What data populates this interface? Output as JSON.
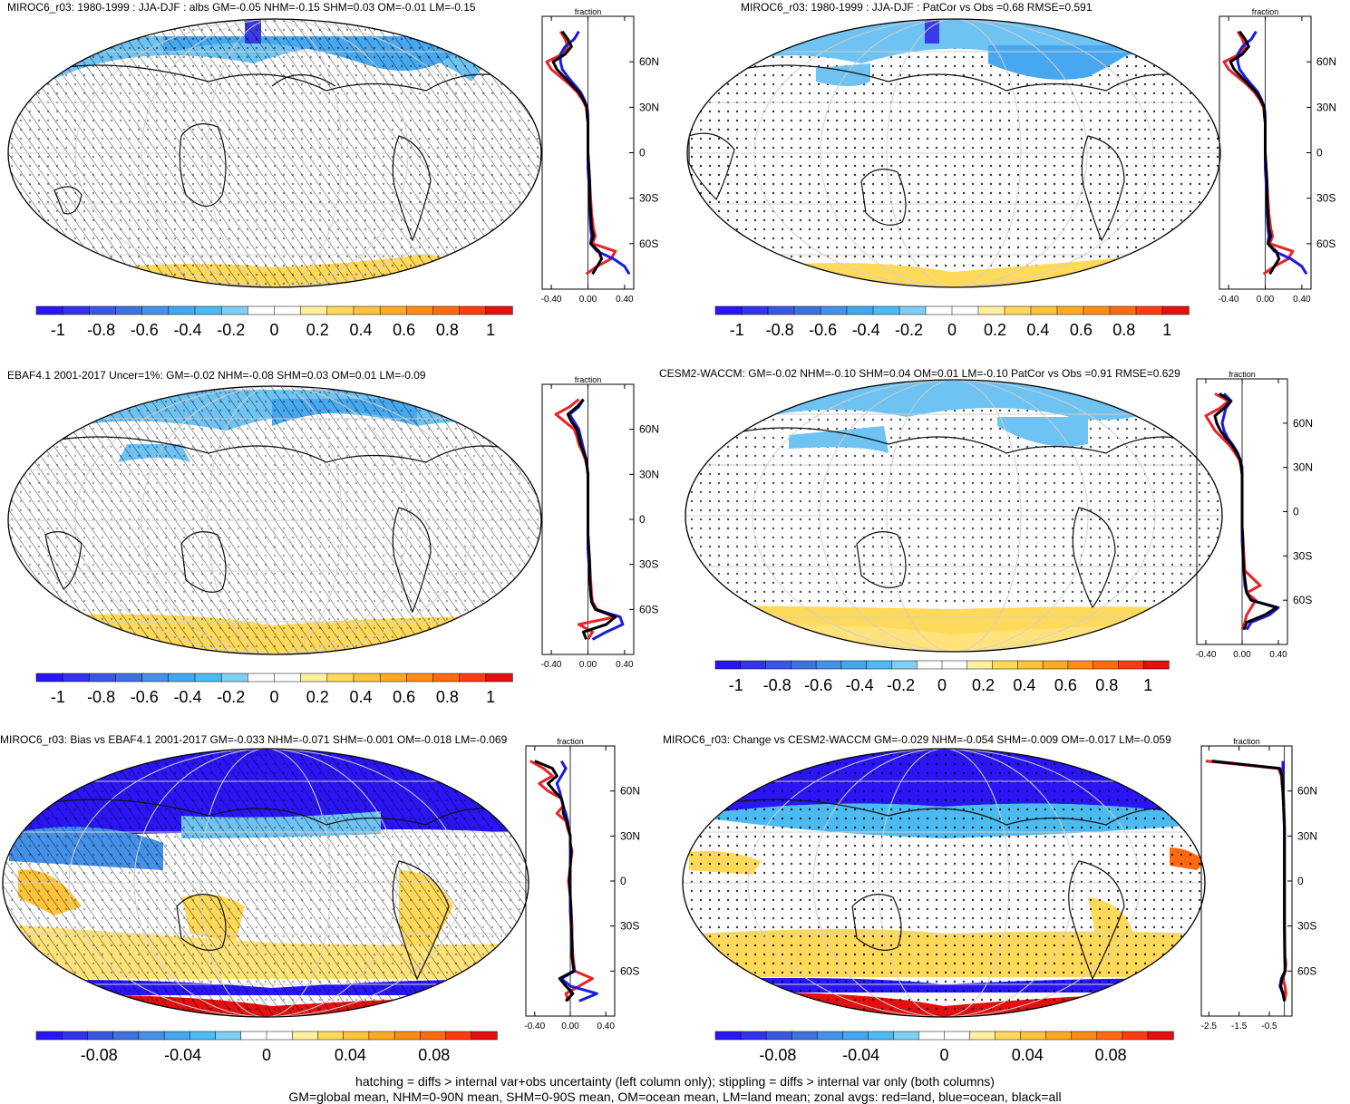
{
  "colors": {
    "ramp": [
      "#2a16f5",
      "#3332f0",
      "#3a56e6",
      "#3f72e0",
      "#4591e8",
      "#43a7ef",
      "#4bbbf2",
      "#7fcff4",
      "#ffffff",
      "#ffffff",
      "#fff0a0",
      "#ffd95a",
      "#ffc33c",
      "#ffaa22",
      "#ff8c14",
      "#ff6a10",
      "#ff3a10",
      "#e41010"
    ],
    "land": "#e8232a",
    "ocean": "#1a1ae6",
    "all": "#000000"
  },
  "footer": {
    "line1": "hatching = diffs > internal var+obs uncertainty (left column only); stippling = diffs > internal var only (both columns)",
    "line2": "GM=global mean, NHM=0-90N mean, SHM=0-90S mean, OM=ocean mean, LM=land mean; zonal avgs: red=land, blue=ocean, black=all"
  },
  "chart_data": [
    {
      "type": "heatmap",
      "title": "MIROC6_r03: 1980-1999 : JJA-DJF : albs GM=-0.05 NHM=-0.15 SHM=0.03 OM=-0.01 LM=-0.15",
      "colorbar_ticks": [
        "-1",
        "-0.8",
        "-0.6",
        "-0.4",
        "-0.2",
        "0",
        "0.2",
        "0.4",
        "0.6",
        "0.8",
        "1"
      ],
      "colorbar_range": [
        -1.1,
        1.1
      ],
      "zonal": {
        "label": "fraction",
        "x_ticks": [
          "-0.40",
          "0.00",
          "0.40"
        ],
        "xlim": [
          -0.5,
          0.5
        ],
        "y_ticks": [
          "60N",
          "30N",
          "0",
          "30S",
          "60S"
        ],
        "lat": [
          80,
          75,
          70,
          65,
          60,
          55,
          50,
          45,
          40,
          35,
          30,
          25,
          20,
          10,
          0,
          -10,
          -20,
          -30,
          -40,
          -50,
          -55,
          -60,
          -65,
          -70,
          -75,
          -80
        ],
        "land": [
          -0.3,
          -0.25,
          -0.22,
          -0.28,
          -0.45,
          -0.4,
          -0.3,
          -0.2,
          -0.12,
          -0.06,
          -0.02,
          -0.01,
          0,
          0,
          0,
          0.01,
          0.02,
          0.03,
          0.04,
          0.06,
          0.08,
          0.05,
          0.3,
          0.25,
          0.1,
          -0.02
        ],
        "ocean": [
          -0.1,
          -0.15,
          -0.25,
          -0.3,
          -0.3,
          -0.28,
          -0.22,
          -0.15,
          -0.08,
          -0.04,
          -0.01,
          0,
          0,
          0,
          0,
          0,
          0.01,
          0.02,
          0.02,
          0.03,
          0.04,
          0.03,
          0.1,
          0.28,
          0.4,
          0.45
        ],
        "all": [
          -0.28,
          -0.22,
          -0.18,
          -0.25,
          -0.38,
          -0.34,
          -0.26,
          -0.18,
          -0.1,
          -0.05,
          -0.01,
          -0.01,
          0,
          0,
          0,
          0.01,
          0.02,
          0.02,
          0.03,
          0.04,
          0.06,
          0.03,
          0.12,
          0.15,
          0.1,
          0.05
        ]
      }
    },
    {
      "type": "heatmap",
      "title": "MIROC6_r03: 1980-1999 : JJA-DJF : PatCor vs Obs =0.68 RMSE=0.591",
      "colorbar_ticks": [
        "-1",
        "-0.8",
        "-0.6",
        "-0.4",
        "-0.2",
        "0",
        "0.2",
        "0.4",
        "0.6",
        "0.8",
        "1"
      ],
      "colorbar_range": [
        -1.1,
        1.1
      ],
      "zonal": {
        "label": "fraction",
        "x_ticks": [
          "-0.40",
          "0.00",
          "0.40"
        ],
        "xlim": [
          -0.5,
          0.5
        ],
        "y_ticks": [
          "60N",
          "30N",
          "0",
          "30S",
          "60S"
        ],
        "lat": [
          80,
          75,
          70,
          65,
          60,
          55,
          50,
          45,
          40,
          35,
          30,
          25,
          20,
          10,
          0,
          -10,
          -20,
          -30,
          -40,
          -50,
          -55,
          -60,
          -65,
          -70,
          -75,
          -80
        ],
        "land": [
          -0.3,
          -0.25,
          -0.22,
          -0.28,
          -0.45,
          -0.4,
          -0.3,
          -0.2,
          -0.12,
          -0.06,
          -0.02,
          -0.01,
          0,
          0,
          0,
          0.01,
          0.02,
          0.03,
          0.04,
          0.06,
          0.08,
          0.05,
          0.3,
          0.25,
          0.1,
          -0.02
        ],
        "ocean": [
          -0.1,
          -0.15,
          -0.25,
          -0.3,
          -0.3,
          -0.28,
          -0.22,
          -0.15,
          -0.08,
          -0.04,
          -0.01,
          0,
          0,
          0,
          0,
          0,
          0.01,
          0.02,
          0.02,
          0.03,
          0.04,
          0.03,
          0.1,
          0.28,
          0.4,
          0.45
        ],
        "all": [
          -0.28,
          -0.22,
          -0.18,
          -0.25,
          -0.38,
          -0.34,
          -0.26,
          -0.18,
          -0.1,
          -0.05,
          -0.01,
          -0.01,
          0,
          0,
          0,
          0.01,
          0.02,
          0.02,
          0.03,
          0.04,
          0.06,
          0.03,
          0.12,
          0.15,
          0.1,
          0.05
        ]
      }
    },
    {
      "type": "heatmap",
      "title": "EBAF4.1 2001-2017 Uncer=1%: GM=-0.02 NHM=-0.08 SHM=0.03 OM=0.01 LM=-0.09",
      "colorbar_ticks": [
        "-1",
        "-0.8",
        "-0.6",
        "-0.4",
        "-0.2",
        "0",
        "0.2",
        "0.4",
        "0.6",
        "0.8",
        "1"
      ],
      "colorbar_range": [
        -1.1,
        1.1
      ],
      "zonal": {
        "label": "fraction",
        "x_ticks": [
          "-0.40",
          "0.00",
          "0.40"
        ],
        "xlim": [
          -0.5,
          0.5
        ],
        "y_ticks": [
          "60N",
          "30N",
          "0",
          "30S",
          "60S"
        ],
        "lat": [
          80,
          75,
          70,
          65,
          60,
          55,
          50,
          45,
          40,
          35,
          30,
          25,
          20,
          10,
          0,
          -10,
          -20,
          -30,
          -40,
          -50,
          -55,
          -60,
          -65,
          -70,
          -75,
          -80
        ],
        "land": [
          -0.1,
          -0.2,
          -0.35,
          -0.25,
          -0.15,
          -0.12,
          -0.1,
          -0.06,
          -0.03,
          -0.01,
          0,
          0,
          0,
          0,
          0,
          0,
          0.01,
          0.02,
          0.03,
          0.04,
          0.05,
          0.1,
          0.3,
          -0.1,
          0.05,
          0
        ],
        "ocean": [
          -0.05,
          -0.1,
          -0.2,
          -0.15,
          -0.1,
          -0.08,
          -0.06,
          -0.04,
          -0.02,
          -0.01,
          0,
          0,
          0,
          0,
          0,
          0,
          0,
          0.01,
          0.02,
          0.03,
          0.04,
          0.08,
          0.35,
          0.38,
          0.2,
          0.05
        ],
        "all": [
          -0.05,
          -0.12,
          -0.22,
          -0.18,
          -0.12,
          -0.1,
          -0.08,
          -0.05,
          -0.02,
          -0.01,
          0,
          0,
          0,
          0,
          0,
          0,
          0.01,
          0.02,
          0.02,
          0.03,
          0.04,
          0.08,
          0.3,
          0.2,
          -0.05,
          -0.02
        ]
      }
    },
    {
      "type": "heatmap",
      "title": "CESM2-WACCM: GM=-0.02 NHM=-0.10 SHM=0.04 OM=0.01 LM=-0.10 PatCor vs Obs =0.91 RMSE=0.629",
      "colorbar_ticks": [
        "-1",
        "-0.8",
        "-0.6",
        "-0.4",
        "-0.2",
        "0",
        "0.2",
        "0.4",
        "0.6",
        "0.8",
        "1"
      ],
      "colorbar_range": [
        -1.1,
        1.1
      ],
      "zonal": {
        "label": "fraction",
        "x_ticks": [
          "-0.40",
          "0.00",
          "0.40"
        ],
        "xlim": [
          -0.5,
          0.5
        ],
        "y_ticks": [
          "60N",
          "30N",
          "0",
          "30S",
          "60S"
        ],
        "lat": [
          80,
          75,
          70,
          65,
          60,
          55,
          50,
          45,
          40,
          35,
          30,
          25,
          20,
          10,
          0,
          -10,
          -20,
          -30,
          -40,
          -50,
          -55,
          -60,
          -65,
          -70,
          -75,
          -80
        ],
        "land": [
          -0.3,
          -0.15,
          -0.25,
          -0.4,
          -0.35,
          -0.3,
          -0.22,
          -0.14,
          -0.08,
          -0.03,
          -0.01,
          0,
          0,
          0,
          0,
          0,
          0.01,
          0.02,
          0.03,
          0.2,
          0.05,
          0.15,
          0.1,
          0.05,
          0.03,
          0
        ],
        "ocean": [
          -0.2,
          -0.12,
          -0.18,
          -0.2,
          -0.22,
          -0.2,
          -0.16,
          -0.1,
          -0.05,
          -0.02,
          0,
          0,
          0,
          0,
          0,
          0,
          0,
          0.01,
          0.02,
          0.03,
          0.05,
          0.1,
          0.4,
          0.3,
          0.1,
          0.05
        ],
        "all": [
          -0.25,
          -0.13,
          -0.2,
          -0.3,
          -0.28,
          -0.24,
          -0.18,
          -0.11,
          -0.06,
          -0.02,
          -0.01,
          0,
          0,
          0,
          0,
          0,
          0.01,
          0.01,
          0.02,
          0.04,
          0.05,
          0.1,
          0.38,
          0.25,
          0.05,
          0.02
        ]
      }
    },
    {
      "type": "heatmap",
      "title": "MIROC6_r03: Bias vs EBAF4.1 2001-2017 GM=-0.033 NHM=-0.071 SHM=-0.001 OM=-0.018 LM=-0.069",
      "colorbar_ticks": [
        "-0.08",
        "-0.04",
        "0",
        "0.04",
        "0.08"
      ],
      "colorbar_range": [
        -0.11,
        0.11
      ],
      "zonal": {
        "label": "fraction",
        "x_ticks": [
          "-0.40",
          "0.00",
          "0.40"
        ],
        "xlim": [
          -0.5,
          0.5
        ],
        "y_ticks": [
          "60N",
          "30N",
          "0",
          "30S",
          "60S"
        ],
        "lat": [
          80,
          75,
          70,
          65,
          60,
          55,
          50,
          45,
          40,
          35,
          30,
          25,
          20,
          10,
          0,
          -10,
          -20,
          -30,
          -40,
          -50,
          -55,
          -60,
          -65,
          -70,
          -75,
          -80
        ],
        "land": [
          -0.45,
          -0.3,
          -0.2,
          -0.35,
          -0.25,
          -0.1,
          -0.08,
          -0.15,
          -0.05,
          -0.03,
          0,
          0,
          0.02,
          0,
          -0.02,
          0,
          0.01,
          0.02,
          0.02,
          0.03,
          0.04,
          0.05,
          0.25,
          0.1,
          -0.05,
          -0.02
        ],
        "ocean": [
          -0.1,
          -0.05,
          -0.1,
          -0.15,
          -0.12,
          -0.1,
          -0.08,
          -0.05,
          -0.03,
          -0.02,
          0,
          0,
          0,
          0,
          0,
          0,
          0,
          0.01,
          0.01,
          0.02,
          0.03,
          0.05,
          -0.1,
          0,
          0.3,
          0.1
        ],
        "all": [
          -0.4,
          -0.2,
          -0.15,
          -0.25,
          -0.18,
          -0.1,
          -0.08,
          -0.08,
          -0.04,
          -0.02,
          0,
          0,
          0.01,
          0,
          -0.01,
          0,
          0.01,
          0.01,
          0.02,
          0.02,
          0.03,
          0.04,
          -0.12,
          -0.05,
          0.03,
          -0.05
        ]
      }
    },
    {
      "type": "heatmap",
      "title": "MIROC6_r03: Change vs CESM2-WACCM GM=-0.029 NHM=-0.054 SHM=-0.009 OM=-0.017 LM=-0.059",
      "colorbar_ticks": [
        "-0.08",
        "-0.04",
        "0",
        "0.04",
        "0.08"
      ],
      "colorbar_range": [
        -0.11,
        0.11
      ],
      "zonal": {
        "label": "fraction",
        "x_ticks": [
          "-2.5",
          "-1.5",
          "-0.5"
        ],
        "xlim": [
          -2.75,
          0.25
        ],
        "y_ticks": [
          "60N",
          "30N",
          "0",
          "30S",
          "60S"
        ],
        "lat": [
          80,
          75,
          70,
          65,
          60,
          55,
          50,
          45,
          40,
          35,
          30,
          25,
          20,
          10,
          0,
          -10,
          -20,
          -30,
          -40,
          -50,
          -55,
          -60,
          -65,
          -70,
          -75,
          -80
        ],
        "land": [
          -2.6,
          -0.2,
          -0.1,
          -0.08,
          -0.06,
          -0.04,
          -0.03,
          -0.02,
          -0.01,
          0,
          0,
          0,
          0,
          0,
          0,
          0,
          0,
          0,
          0.01,
          0.02,
          0.05,
          0.03,
          -0.05,
          0.02,
          0.05,
          0
        ],
        "ocean": [
          -0.05,
          -0.05,
          -0.06,
          -0.05,
          -0.04,
          -0.03,
          -0.02,
          -0.01,
          0,
          0,
          0,
          0,
          0,
          0,
          0,
          0,
          0,
          0,
          0,
          0.01,
          0.02,
          0.02,
          -0.1,
          -0.15,
          -0.05,
          0
        ],
        "all": [
          -2.4,
          -0.15,
          -0.08,
          -0.07,
          -0.05,
          -0.04,
          -0.03,
          -0.02,
          -0.01,
          0,
          0,
          0,
          0,
          0,
          0,
          0,
          0,
          0,
          0.01,
          0.01,
          0.02,
          0.02,
          -0.08,
          -0.12,
          -0.05,
          0
        ]
      }
    }
  ]
}
